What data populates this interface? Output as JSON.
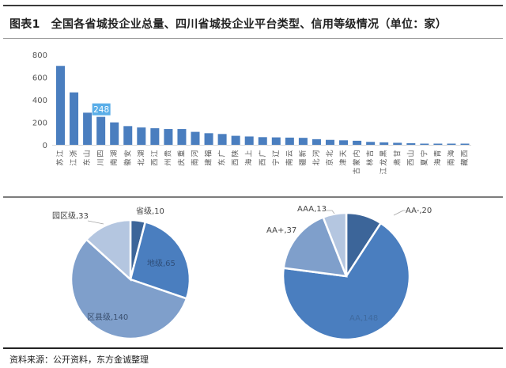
{
  "header": {
    "figure_label": "图表1",
    "title": "全国各省城投企业总量、四川省城投企业平台类型、信用等级情况（单位：家）"
  },
  "footer": {
    "source": "资料来源：公开资料，东方金诚整理"
  },
  "colors": {
    "bar": "#4a7ebf",
    "highlight_label_bg": "#5aaee8",
    "pie_dark": "#3c6599",
    "pie_medium": "#4a7ebf",
    "pie_mid_light": "#7f9fcb",
    "pie_light": "#b4c6e0"
  },
  "chart_data": [
    {
      "type": "bar",
      "title": "",
      "xlabel": "",
      "ylabel": "",
      "ylim": [
        0,
        800
      ],
      "yticks": [
        0,
        200,
        400,
        600,
        800
      ],
      "grid": false,
      "categories": [
        "江苏",
        "浙江",
        "山东",
        "四川",
        "湖南",
        "安徽",
        "湖北",
        "江西",
        "贵州",
        "重庆",
        "河南",
        "福建",
        "广东",
        "陕西",
        "上海",
        "广西",
        "辽宁",
        "云南",
        "新疆",
        "河北",
        "北京",
        "天津",
        "内蒙古",
        "吉林",
        "黑龙江",
        "甘肃",
        "山西",
        "宁夏",
        "青海",
        "海南",
        "西藏"
      ],
      "values": [
        700,
        465,
        285,
        248,
        199,
        166,
        154,
        147,
        140,
        140,
        115,
        103,
        96,
        80,
        74,
        68,
        66,
        64,
        62,
        50,
        44,
        40,
        36,
        26,
        22,
        18,
        14,
        4,
        3,
        3,
        2
      ],
      "annotations": [
        {
          "category": "四川",
          "label": "248"
        }
      ]
    },
    {
      "type": "pie",
      "title": "",
      "slices": [
        {
          "label": "省级",
          "value": 10,
          "text": "省级,10"
        },
        {
          "label": "地级",
          "value": 65,
          "text": "地级,65"
        },
        {
          "label": "区县级",
          "value": 140,
          "text": "区县级,140"
        },
        {
          "label": "园区级",
          "value": 33,
          "text": "园区级,33"
        }
      ]
    },
    {
      "type": "pie",
      "title": "",
      "slices": [
        {
          "label": "AA-",
          "value": 20,
          "text": "AA-,20"
        },
        {
          "label": "AA",
          "value": 148,
          "text": "AA,148"
        },
        {
          "label": "AA+",
          "value": 37,
          "text": "AA+,37"
        },
        {
          "label": "AAA",
          "value": 13,
          "text": "AAA,13"
        }
      ]
    }
  ]
}
